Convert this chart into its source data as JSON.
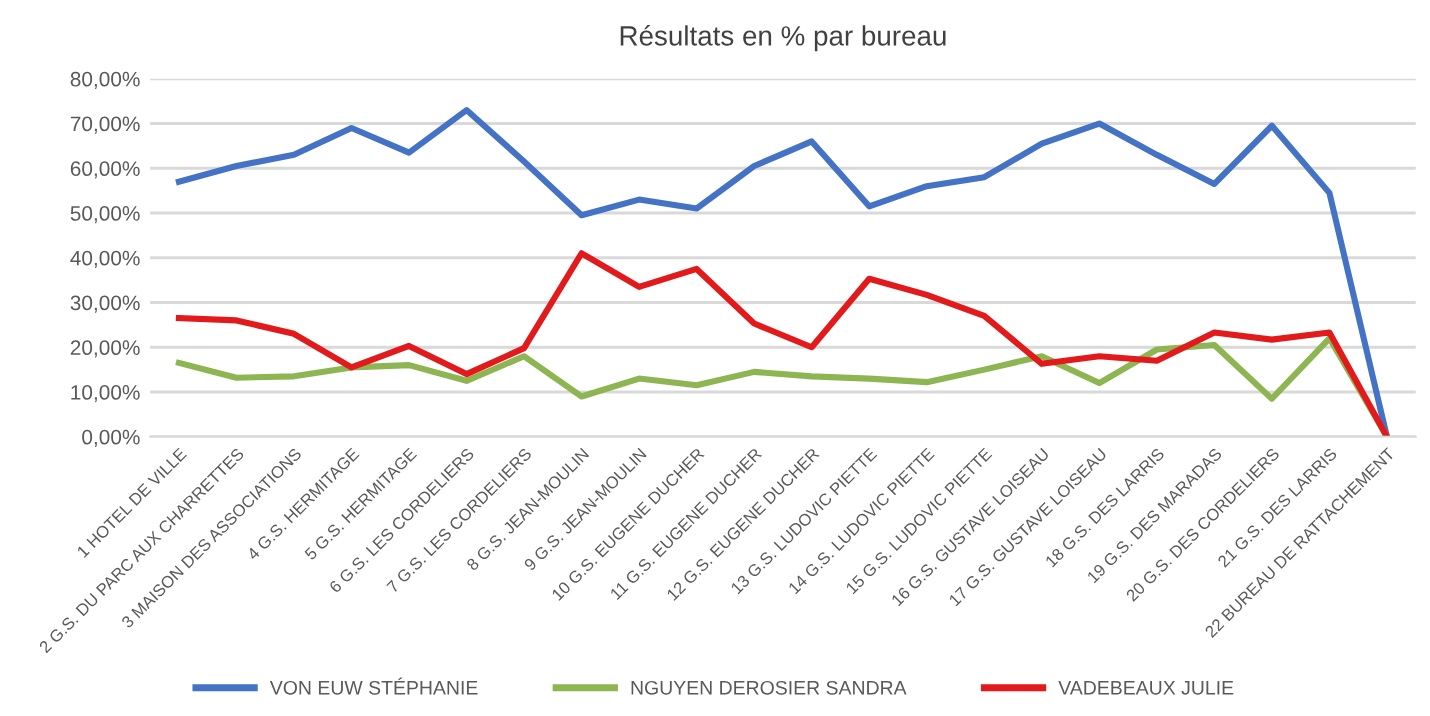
{
  "chart_data": {
    "type": "line",
    "title": "Résultats en % par bureau",
    "categories": [
      "1 HOTEL DE VILLE",
      "2 G.S. DU PARC AUX CHARRETTES",
      "3 MAISON DES ASSOCIATIONS",
      "4 G.S. HERMITAGE",
      "5 G.S. HERMITAGE",
      "6 G.S. LES CORDELIERS",
      "7 G.S. LES CORDELIERS",
      "8 G.S. JEAN-MOULIN",
      "9 G.S. JEAN-MOULIN",
      "10 G.S. EUGENE DUCHER",
      "11 G.S. EUGENE DUCHER",
      "12 G.S. EUGENE DUCHER",
      "13 G.S. LUDOVIC PIETTE",
      "14 G.S. LUDOVIC PIETTE",
      "15 G.S. LUDOVIC PIETTE",
      "16 G.S. GUSTAVE LOISEAU",
      "17 G.S. GUSTAVE LOISEAU",
      "18 G.S. DES LARRIS",
      "19 G.S. DES MARADAS",
      "20 G.S. DES CORDELIERS",
      "21 G.S. DES LARRIS",
      "22 BUREAU DE RATTACHEMENT"
    ],
    "series": [
      {
        "name": "VON EUW STÉPHANIE",
        "color": "#4472c4",
        "values": [
          57,
          60.5,
          63,
          69,
          63.5,
          73,
          61.5,
          49.5,
          53,
          51,
          60.5,
          66,
          51.5,
          56,
          58,
          65.5,
          70,
          63,
          56.5,
          69.5,
          54.5,
          0
        ]
      },
      {
        "name": "NGUYEN DEROSIER SANDRA",
        "color": "#8db653",
        "values": [
          16.5,
          13.2,
          13.5,
          15.5,
          16,
          12.5,
          18,
          9,
          13,
          11.5,
          14.5,
          13.5,
          13,
          12.2,
          15,
          18,
          12,
          19.5,
          20.5,
          8.5,
          22,
          0
        ]
      },
      {
        "name": "VADEBEAUX JULIE",
        "color": "#e31a1c",
        "values": [
          26.5,
          26,
          23,
          15.5,
          20.3,
          14,
          19.8,
          41,
          33.5,
          37.5,
          25.3,
          20,
          35.3,
          31.7,
          27,
          16.3,
          18,
          17,
          23.3,
          21.7,
          23.3,
          0
        ]
      }
    ],
    "ylim": [
      0,
      80
    ],
    "yticks": [
      {
        "value": 0,
        "label": "0,00%"
      },
      {
        "value": 10,
        "label": "10,00%"
      },
      {
        "value": 20,
        "label": "20,00%"
      },
      {
        "value": 30,
        "label": "30,00%"
      },
      {
        "value": 40,
        "label": "40,00%"
      },
      {
        "value": 50,
        "label": "50,00%"
      },
      {
        "value": 60,
        "label": "60,00%"
      },
      {
        "value": 70,
        "label": "70,00%"
      },
      {
        "value": 80,
        "label": "80,00%"
      }
    ],
    "grid": "y",
    "legend": "bottom",
    "marker": "none",
    "line_style": "solid"
  }
}
